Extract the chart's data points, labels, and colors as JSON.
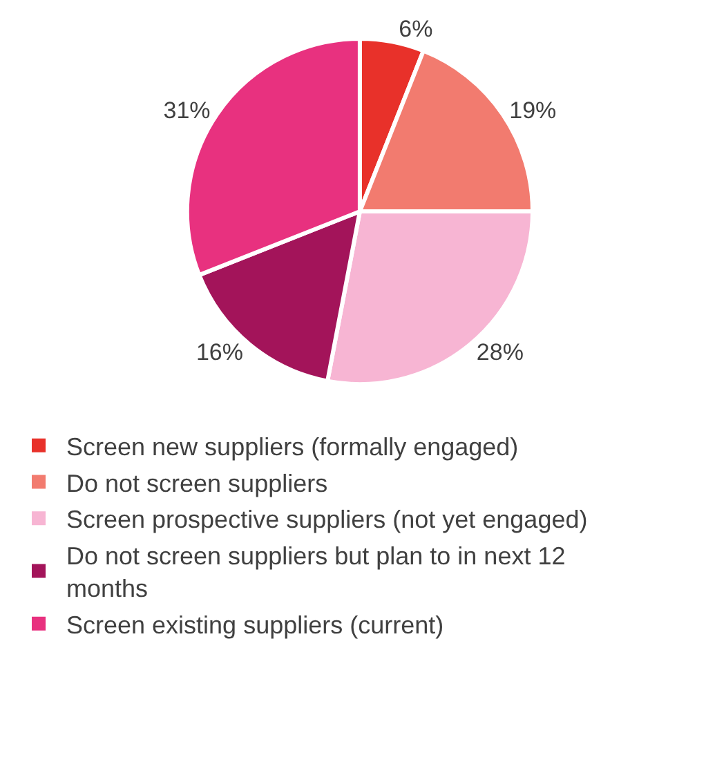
{
  "chart_data": {
    "type": "pie",
    "categories": [
      "Screen new suppliers (formally engaged)",
      "Do not screen suppliers",
      "Screen prospective suppliers (not yet engaged)",
      "Do not screen suppliers but plan to in next 12 months",
      "Screen existing suppliers (current)"
    ],
    "values": [
      6,
      19,
      28,
      16,
      31
    ],
    "value_labels": [
      "6%",
      "19%",
      "28%",
      "16%",
      "31%"
    ],
    "colors": [
      "#e8312a",
      "#f27b6f",
      "#f7b5d3",
      "#a3145a",
      "#e8317f"
    ],
    "legend": "bottom"
  }
}
